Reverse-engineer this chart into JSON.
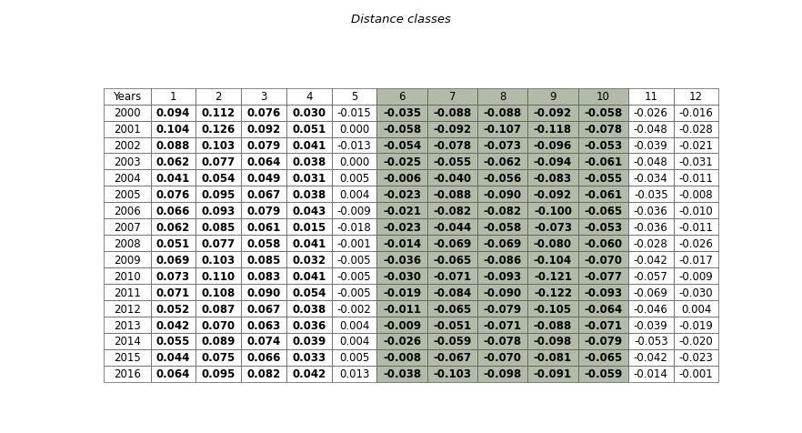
{
  "title": "Distance classes",
  "col_headers": [
    "Years",
    "1",
    "2",
    "3",
    "4",
    "5",
    "6",
    "7",
    "8",
    "9",
    "10",
    "11",
    "12"
  ],
  "rows": [
    [
      "2000",
      "0.094",
      "0.112",
      "0.076",
      "0.030",
      "-0.015",
      "-0.035",
      "-0.088",
      "-0.088",
      "-0.092",
      "-0.058",
      "-0.026",
      "-0.016"
    ],
    [
      "2001",
      "0.104",
      "0.126",
      "0.092",
      "0.051",
      "0.000",
      "-0.058",
      "-0.092",
      "-0.107",
      "-0.118",
      "-0.078",
      "-0.048",
      "-0.028"
    ],
    [
      "2002",
      "0.088",
      "0.103",
      "0.079",
      "0.041",
      "-0.013",
      "-0.054",
      "-0.078",
      "-0.073",
      "-0.096",
      "-0.053",
      "-0.039",
      "-0.021"
    ],
    [
      "2003",
      "0.062",
      "0.077",
      "0.064",
      "0.038",
      "0.000",
      "-0.025",
      "-0.055",
      "-0.062",
      "-0.094",
      "-0.061",
      "-0.048",
      "-0.031"
    ],
    [
      "2004",
      "0.041",
      "0.054",
      "0.049",
      "0.031",
      "0.005",
      "-0.006",
      "-0.040",
      "-0.056",
      "-0.083",
      "-0.055",
      "-0.034",
      "-0.011"
    ],
    [
      "2005",
      "0.076",
      "0.095",
      "0.067",
      "0.038",
      "0.004",
      "-0.023",
      "-0.088",
      "-0.090",
      "-0.092",
      "-0.061",
      "-0.035",
      "-0.008"
    ],
    [
      "2006",
      "0.066",
      "0.093",
      "0.079",
      "0.043",
      "-0.009",
      "-0.021",
      "-0.082",
      "-0.082",
      "-0.100",
      "-0.065",
      "-0.036",
      "-0.010"
    ],
    [
      "2007",
      "0.062",
      "0.085",
      "0.061",
      "0.015",
      "-0.018",
      "-0.023",
      "-0.044",
      "-0.058",
      "-0.073",
      "-0.053",
      "-0.036",
      "-0.011"
    ],
    [
      "2008",
      "0.051",
      "0.077",
      "0.058",
      "0.041",
      "-0.001",
      "-0.014",
      "-0.069",
      "-0.069",
      "-0.080",
      "-0.060",
      "-0.028",
      "-0.026"
    ],
    [
      "2009",
      "0.069",
      "0.103",
      "0.085",
      "0.032",
      "-0.005",
      "-0.036",
      "-0.065",
      "-0.086",
      "-0.104",
      "-0.070",
      "-0.042",
      "-0.017"
    ],
    [
      "2010",
      "0.073",
      "0.110",
      "0.083",
      "0.041",
      "-0.005",
      "-0.030",
      "-0.071",
      "-0.093",
      "-0.121",
      "-0.077",
      "-0.057",
      "-0.009"
    ],
    [
      "2011",
      "0.071",
      "0.108",
      "0.090",
      "0.054",
      "-0.005",
      "-0.019",
      "-0.084",
      "-0.090",
      "-0.122",
      "-0.093",
      "-0.069",
      "-0.030"
    ],
    [
      "2012",
      "0.052",
      "0.087",
      "0.067",
      "0.038",
      "-0.002",
      "-0.011",
      "-0.065",
      "-0.079",
      "-0.105",
      "-0.064",
      "-0.046",
      "0.004"
    ],
    [
      "2013",
      "0.042",
      "0.070",
      "0.063",
      "0.036",
      "0.004",
      "-0.009",
      "-0.051",
      "-0.071",
      "-0.088",
      "-0.071",
      "-0.039",
      "-0.019"
    ],
    [
      "2014",
      "0.055",
      "0.089",
      "0.074",
      "0.039",
      "0.004",
      "-0.026",
      "-0.059",
      "-0.078",
      "-0.098",
      "-0.079",
      "-0.053",
      "-0.020"
    ],
    [
      "2015",
      "0.044",
      "0.075",
      "0.066",
      "0.033",
      "0.005",
      "-0.008",
      "-0.067",
      "-0.070",
      "-0.081",
      "-0.065",
      "-0.042",
      "-0.023"
    ],
    [
      "2016",
      "0.064",
      "0.095",
      "0.082",
      "0.042",
      "0.013",
      "-0.038",
      "-0.103",
      "-0.098",
      "-0.091",
      "-0.059",
      "-0.014",
      "-0.001"
    ]
  ],
  "shaded_cols": [
    6,
    7,
    8,
    9,
    10
  ],
  "shaded_color": "#b2bba8",
  "bold_data_cols": [
    1,
    2,
    3,
    4,
    6,
    7,
    8,
    9,
    10
  ],
  "text_color": "#000000",
  "font_size": 8.5,
  "title_fontsize": 9.5,
  "fig_width": 8.82,
  "fig_height": 4.77,
  "dpi": 100
}
